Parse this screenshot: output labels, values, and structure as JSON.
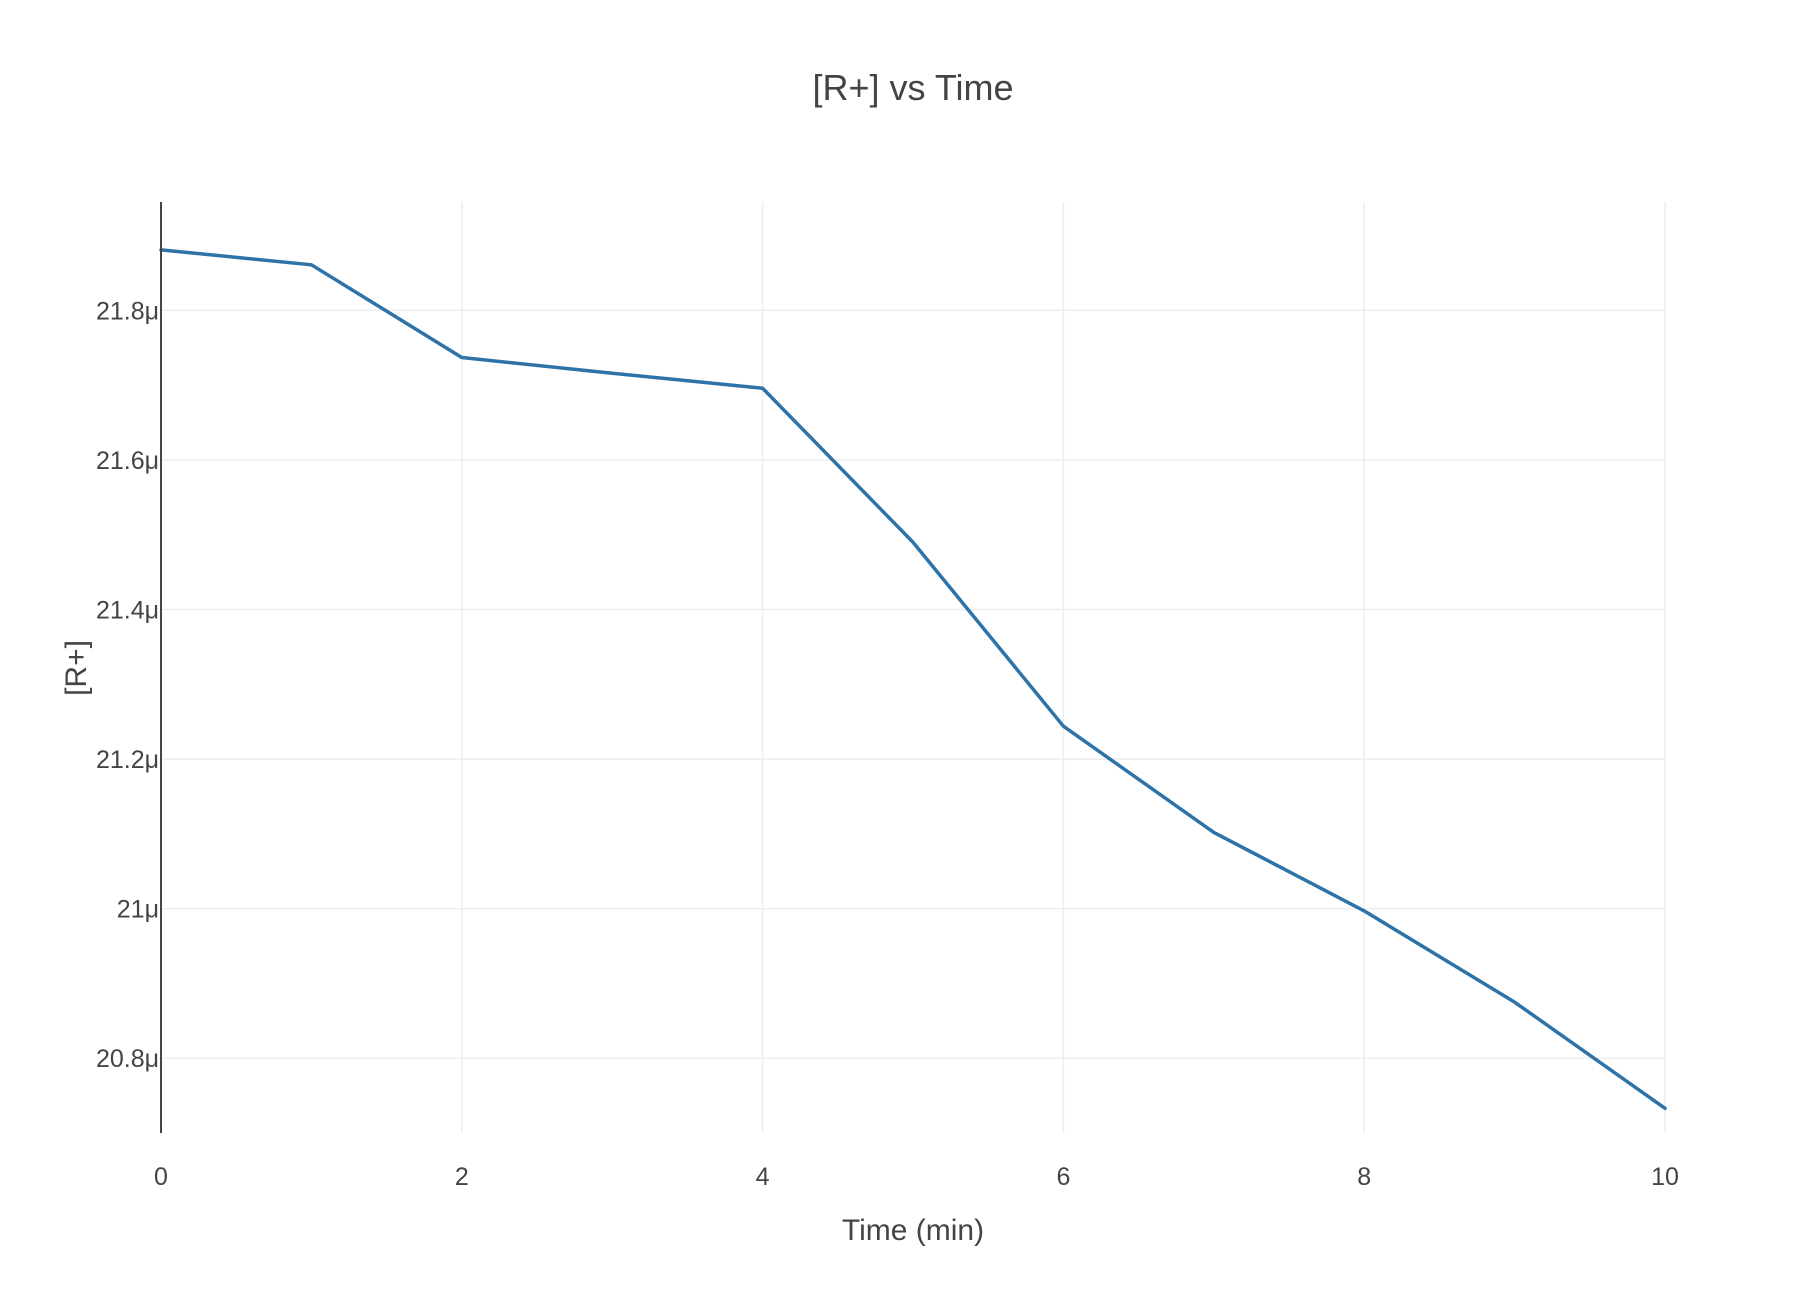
{
  "chart_data": {
    "type": "line",
    "title": "[R+] vs Time",
    "xlabel": "Time (min)",
    "ylabel": "[R+]",
    "xlim": [
      0,
      10
    ],
    "ylim": [
      20.7,
      21.945
    ],
    "x_ticks": [
      0,
      2,
      4,
      6,
      8,
      10
    ],
    "x_tick_labels": [
      "0",
      "2",
      "4",
      "6",
      "8",
      "10"
    ],
    "y_ticks": [
      20.8,
      21.0,
      21.2,
      21.4,
      21.6,
      21.8
    ],
    "y_tick_labels": [
      "20.8μ",
      "21μ",
      "21.2μ",
      "21.4μ",
      "21.6μ",
      "21.8μ"
    ],
    "grid": true,
    "legend": "none",
    "x": [
      0,
      1,
      2,
      3,
      4,
      5,
      6,
      7,
      8,
      9,
      10
    ],
    "series": [
      {
        "color": "#2e73a8",
        "values": [
          21.881,
          21.861,
          21.737,
          21.716,
          21.696,
          21.49,
          21.244,
          21.102,
          20.997,
          20.875,
          20.733
        ]
      }
    ]
  }
}
